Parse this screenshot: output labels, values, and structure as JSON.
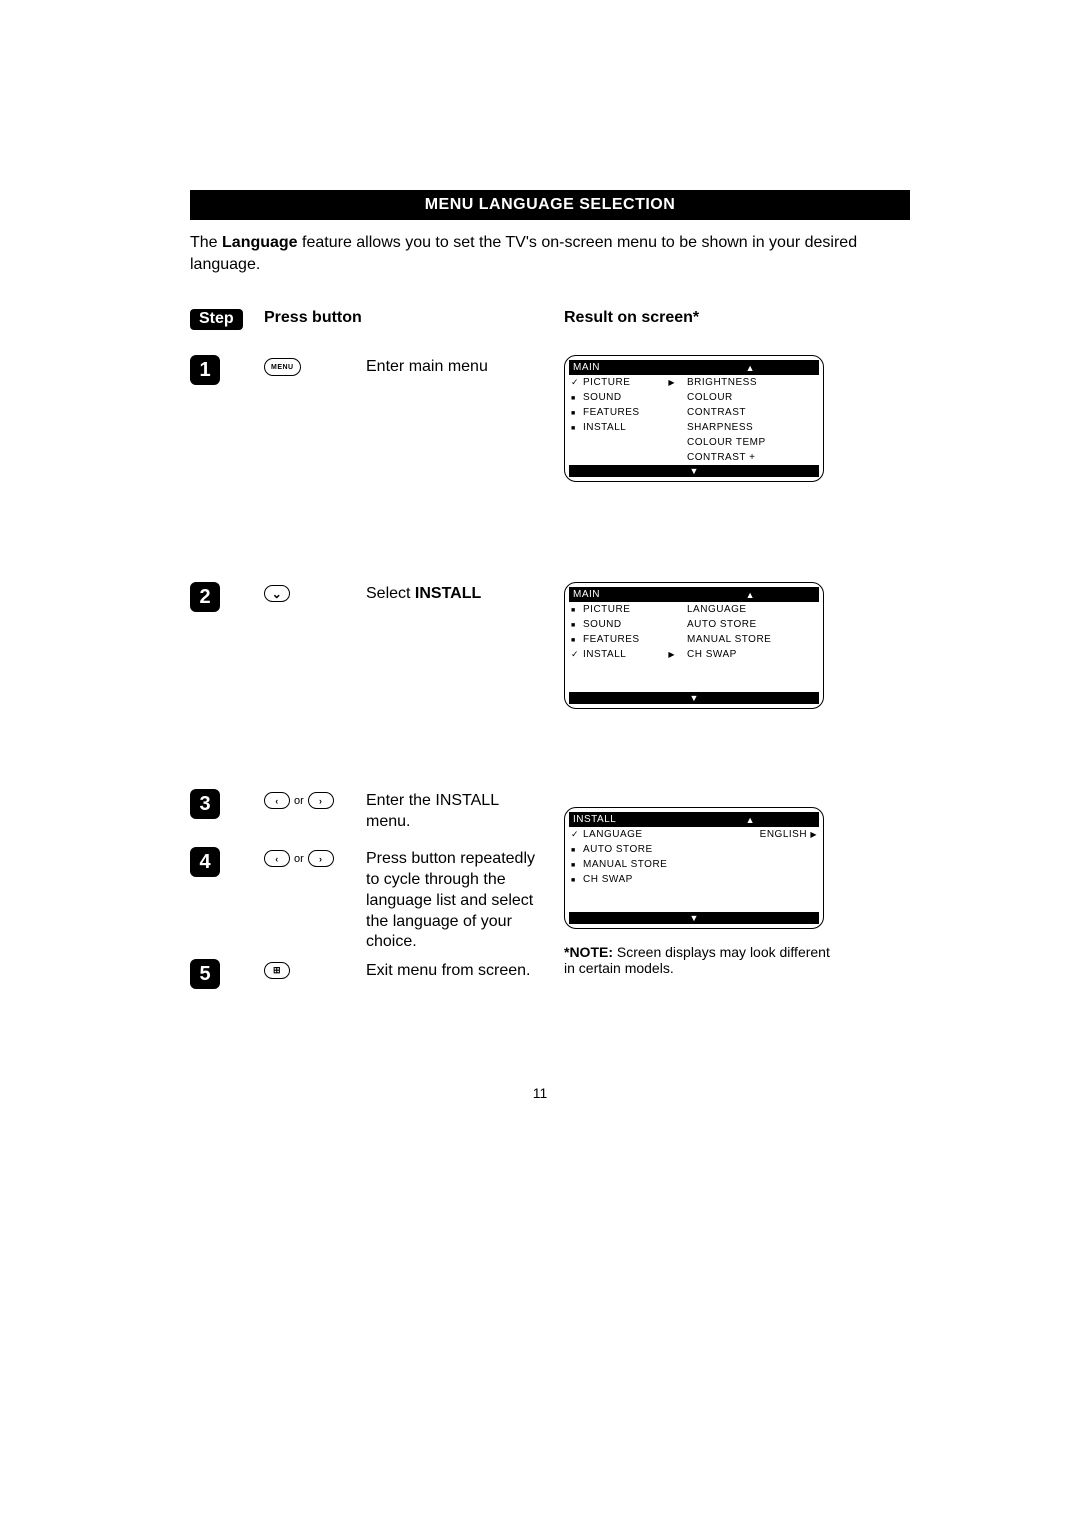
{
  "page": {
    "title": "MENU LANGUAGE SELECTION",
    "intro_parts": {
      "pre": "The ",
      "bold": "Language",
      "post": " feature allows you to set the TV's on-screen menu to be shown in your desired language."
    },
    "headers": {
      "step": "Step",
      "press": "Press button",
      "result": "Result on screen*"
    },
    "page_number": "11"
  },
  "buttons": {
    "menu": "MENU",
    "down": "∨",
    "left": "<",
    "right": ">",
    "or": "or",
    "info": "i+"
  },
  "steps": [
    {
      "num": "1",
      "desc": "Enter main menu"
    },
    {
      "num": "2",
      "desc_pre": "Select ",
      "desc_bold": "INSTALL"
    },
    {
      "num": "3",
      "desc": "Enter the INSTALL menu."
    },
    {
      "num": "4",
      "desc": "Press button repeatedly to cycle through the language list and select the language of your choice."
    },
    {
      "num": "5",
      "desc": "Exit menu from screen."
    }
  ],
  "osd1": {
    "title": "MAIN",
    "left": [
      {
        "label": "PICTURE",
        "active": true
      },
      {
        "label": "SOUND"
      },
      {
        "label": "FEATURES"
      },
      {
        "label": "INSTALL"
      }
    ],
    "right": [
      "BRIGHTNESS",
      "COLOUR",
      "CONTRAST",
      "SHARPNESS",
      "COLOUR TEMP",
      "CONTRAST +"
    ]
  },
  "osd2": {
    "title": "MAIN",
    "left": [
      {
        "label": "PICTURE"
      },
      {
        "label": "SOUND"
      },
      {
        "label": "FEATURES"
      },
      {
        "label": "INSTALL",
        "active": true
      }
    ],
    "right": [
      "LANGUAGE",
      "AUTO STORE",
      "MANUAL STORE",
      "CH SWAP"
    ]
  },
  "osd3": {
    "title": "INSTALL",
    "left": [
      {
        "label": "LANGUAGE",
        "active": true,
        "value": "ENGLISH"
      },
      {
        "label": "AUTO STORE"
      },
      {
        "label": "MANUAL STORE"
      },
      {
        "label": "CH SWAP"
      }
    ]
  },
  "note": {
    "label": "*NOTE:",
    "text": " Screen displays may look different in certain models."
  }
}
